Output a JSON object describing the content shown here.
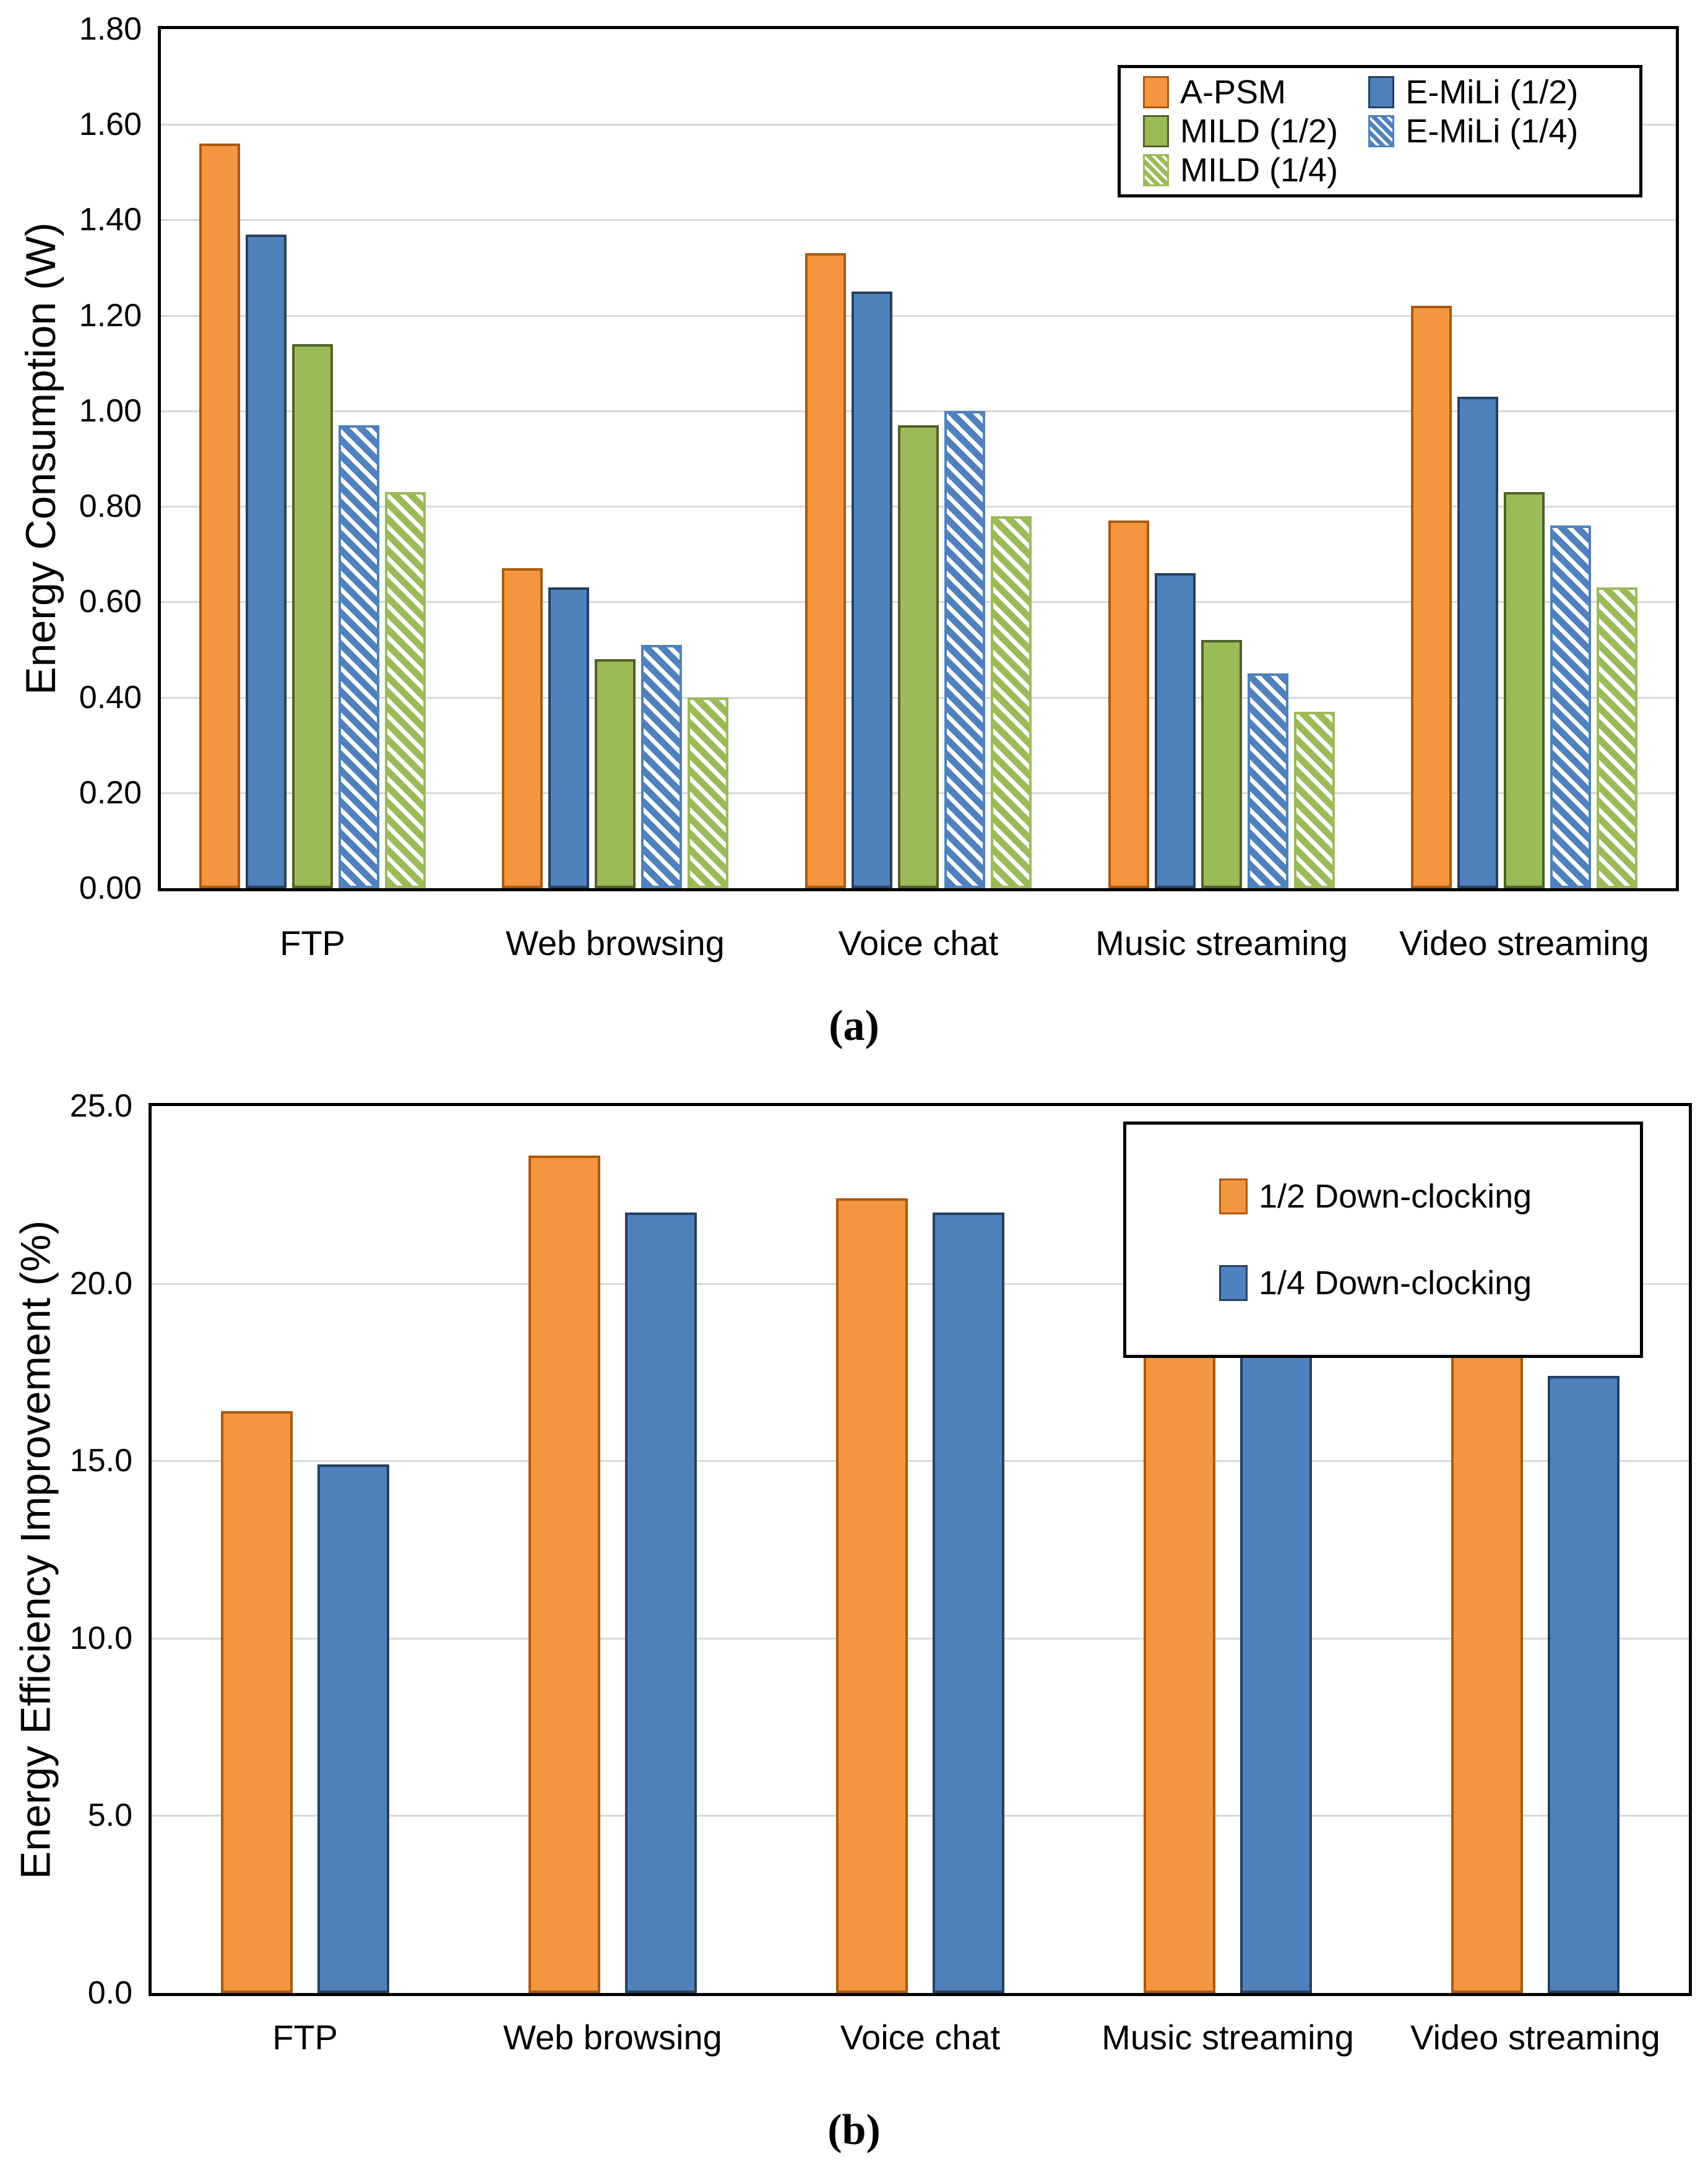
{
  "figure": {
    "colors": {
      "orange": {
        "fill": "#F4953F",
        "border": "#A9590F"
      },
      "blue": {
        "fill": "#4F81BD",
        "border": "#254061"
      },
      "green": {
        "fill": "#9BBB59",
        "border": "#4F6228"
      },
      "gridline": "#D9D9D9",
      "axis": "#000000"
    },
    "chart_data": [
      {
        "type": "bar",
        "caption": "(a)",
        "ylabel": "Energy Consumption (W)",
        "xlabel": "",
        "ylim": [
          0,
          1.8
        ],
        "ytick_step": 0.2,
        "yticks": [
          "0.00",
          "0.20",
          "0.40",
          "0.60",
          "0.80",
          "1.00",
          "1.20",
          "1.40",
          "1.60",
          "1.80"
        ],
        "grid": "horizontal",
        "legend_position": "top-right",
        "legend_columns": 2,
        "categories": [
          "FTP",
          "Web browsing",
          "Voice chat",
          "Music streaming",
          "Video streaming"
        ],
        "series": [
          {
            "name": "A-PSM",
            "color": "orange",
            "pattern": "solid",
            "values": [
              1.56,
              0.67,
              1.33,
              0.77,
              1.22
            ]
          },
          {
            "name": "E-MiLi (1/2)",
            "color": "blue",
            "pattern": "solid",
            "values": [
              1.37,
              0.63,
              1.25,
              0.66,
              1.03
            ]
          },
          {
            "name": "MILD (1/2)",
            "color": "green",
            "pattern": "solid",
            "values": [
              1.14,
              0.48,
              0.97,
              0.52,
              0.83
            ]
          },
          {
            "name": "E-MiLi (1/4)",
            "color": "blue",
            "pattern": "hatch",
            "values": [
              0.97,
              0.51,
              1.0,
              0.45,
              0.76
            ]
          },
          {
            "name": "MILD (1/4)",
            "color": "green",
            "pattern": "hatch",
            "values": [
              0.83,
              0.4,
              0.78,
              0.37,
              0.63
            ]
          }
        ]
      },
      {
        "type": "bar",
        "caption": "(b)",
        "ylabel": "Energy Efficiency Improvement (%)",
        "xlabel": "",
        "ylim": [
          0,
          25.0
        ],
        "ytick_step": 5.0,
        "yticks": [
          "0.0",
          "5.0",
          "10.0",
          "15.0",
          "20.0",
          "25.0"
        ],
        "grid": "horizontal",
        "legend_position": "top-right",
        "legend_columns": 1,
        "categories": [
          "FTP",
          "Web browsing",
          "Voice chat",
          "Music streaming",
          "Video streaming"
        ],
        "series": [
          {
            "name": "1/2 Down-clocking",
            "color": "orange",
            "pattern": "solid",
            "values": [
              16.4,
              23.6,
              22.4,
              20.6,
              19.6
            ]
          },
          {
            "name": "1/4 Down-clocking",
            "color": "blue",
            "pattern": "solid",
            "values": [
              14.9,
              22.0,
              22.0,
              19.1,
              17.4
            ]
          }
        ]
      }
    ]
  }
}
